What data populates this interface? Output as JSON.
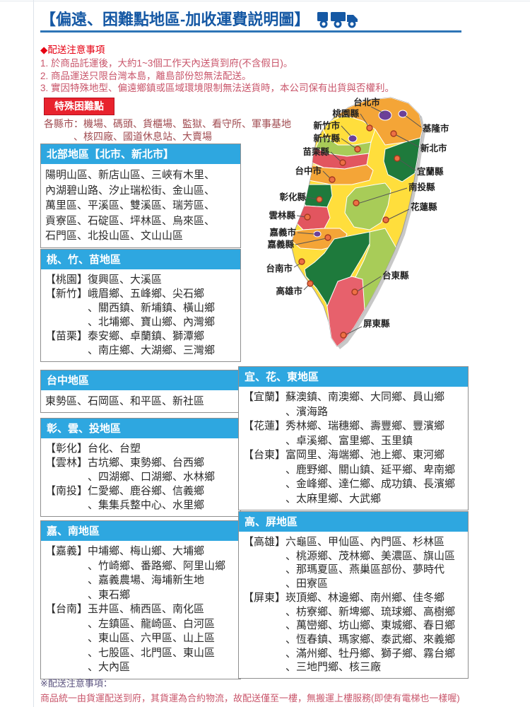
{
  "title": {
    "text": "【偏遠、困難點地區-加收運費説明圖】",
    "icon": "truck-icon"
  },
  "delivery_notes": {
    "heading": "◆配送注意事項",
    "items": [
      "1. 於商品託運後，大約1~3個工作天內送貨到府(不含假日)。",
      "2. 商品運送只限台灣本島，離島部份恕無法配送。",
      "3. 實因特殊地型、偏遠鄉鎮或區域環境限制無法送貨時，本公司保有出貨與否權利。"
    ]
  },
  "special_points": {
    "badge": "特殊困難點",
    "lines": [
      "各縣市：機場、碼頭、貨櫃場、監獄、看守所、軍事基地",
      "　　　、核四廠、國道休息站、大賣場"
    ]
  },
  "region_boxes": {
    "north": {
      "title": "北部地區【北市、新北市】",
      "lines": [
        "陽明山區、新店山區、三峽有木里、",
        "內湖碧山路、汐止瑞松街、金山區、",
        "萬里區、平溪區、雙溪區、瑞芳區、",
        "貢寮區、石碇區、坪林區、烏來區、",
        "石門區、北投山區、文山山區"
      ]
    },
    "taoyuan_hsinchu_miaoli": {
      "title": "桃、竹、苗地區",
      "lines": [
        "【桃園】復興區、大溪區",
        "【新竹】峨眉鄉、五峰鄉、尖石鄉",
        "　　　　、關西鎮、新埔鎮、橫山鄉",
        "　　　　、北埔鄉、寶山鄉、內灣鄉",
        "【苗栗】泰安鄉、卓蘭鎮、獅潭鄉",
        "　　　　、南庄鄉、大湖鄉、三灣鄉"
      ]
    },
    "taichung": {
      "title": "台中地區",
      "lines": [
        "東勢區、石岡區、和平區、新社區"
      ]
    },
    "changhua_yunlin_nantou": {
      "title": "彰、雲、投地區",
      "lines": [
        "【彰化】台化、台塑",
        "【雲林】古坑鄉、東勢鄉、台西鄉",
        "　　　　、四湖鄉、口湖鄉、水林鄉",
        "【南投】仁愛鄉、鹿谷鄉、信義鄉",
        "　　　　、集集兵整中心、水里鄉"
      ]
    },
    "chiayi_tainan": {
      "title": "嘉、南地區",
      "lines": [
        "【嘉義】中埔鄉、梅山鄉、大埔鄉",
        "　　　　、竹崎鄉、番路鄉、阿里山鄉",
        "　　　　、嘉義農場、海埔新生地",
        "　　　　、東石鄉",
        "【台南】玉井區、楠西區、南化區",
        "　　　　、左鎮區、龍崎區、白河區",
        "　　　　、東山區、六甲區、山上區",
        "　　　　、七股區、北門區、東山區",
        "　　　　、大內區"
      ]
    },
    "yilan_hualien_taitung": {
      "title": "宜、花、東地區",
      "lines": [
        "【宜蘭】蘇澳鎮、南澳鄉、大同鄉、員山鄉",
        "　　　　、濱海路",
        "【花蓮】秀林鄉、瑞穗鄉、壽豐鄉、豐濱鄉",
        "　　　　、卓溪鄉、富里鄉、玉里鎮",
        "【台東】富岡里、海端鄉、池上鄉、東河鄉",
        "　　　　、鹿野鄉、關山鎮、延平鄉、卑南鄉",
        "　　　　、金峰鄉、達仁鄉、成功鎮、長濱鄉",
        "　　　　、太麻里鄉、大武鄉"
      ]
    },
    "kaohsiung_pingtung": {
      "title": "高、屏地區",
      "lines": [
        "【高雄】六龜區、甲仙區、內門區、杉林區",
        "　　　　、桃源鄉、茂林鄉、美濃區、旗山區",
        "　　　　、那瑪夏區、燕巢區部份、夢時代",
        "　　　　、田寮區",
        "【屏東】崁頂鄉、林邊鄉、南州鄉、佳冬鄉",
        "　　　　、枋寮鄉、新埤鄉、琉球鄉、高樹鄉",
        "　　　　、萬巒鄉、坊山鄉、東城鄉、春日鄉",
        "　　　　、恆春鎮、瑪家鄉、泰武鄉、來義鄉",
        "　　　　、滿州鄉、牡丹鄉、獅子鄉、霧台鄉",
        "　　　　、三地門鄉、核三廠"
      ]
    }
  },
  "map": {
    "labels": [
      {
        "name": "台北市"
      },
      {
        "name": "桃園縣"
      },
      {
        "name": "新竹市"
      },
      {
        "name": "新竹縣"
      },
      {
        "name": "苗栗縣"
      },
      {
        "name": "台中市"
      },
      {
        "name": "彰化縣"
      },
      {
        "name": "雲林縣"
      },
      {
        "name": "嘉義市"
      },
      {
        "name": "嘉義縣"
      },
      {
        "name": "台南市"
      },
      {
        "name": "高雄市"
      },
      {
        "name": "基隆市"
      },
      {
        "name": "新北市"
      },
      {
        "name": "宜蘭縣"
      },
      {
        "name": "南投縣"
      },
      {
        "name": "花蓮縣"
      },
      {
        "name": "台東縣"
      },
      {
        "name": "屏東縣"
      }
    ]
  },
  "footer_note": {
    "heading": "※配送注意事項：",
    "text": "商品統一由貨運配送到府，其貨運為合約物流，故配送僅至一樓，無搬運上樓服務(即使有電梯也一樣喔)"
  },
  "colors": {
    "title_blue": "#1558A4",
    "underline_blue": "#2E75B6",
    "box_header_blue": "#2EA7E0",
    "badge_red": "#E8222D",
    "notice_heading_red": "#E60012",
    "notice_item_pink": "#C9566B",
    "special_text_maroon": "#A04B50",
    "footer_heading_purple": "#5C5480",
    "map_yellow": "#FFDE3C",
    "map_orange": "#F4A537",
    "map_light_green": "#A8CC58",
    "map_dark_green": "#1E7A3C",
    "map_red": "#E2555F",
    "map_pink": "#E7616C",
    "map_purple": "#6C4098"
  }
}
